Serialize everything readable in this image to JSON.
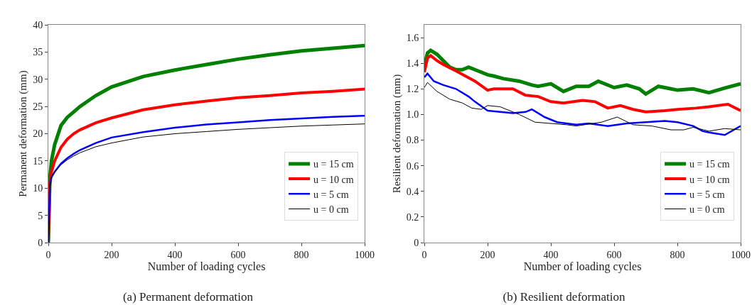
{
  "chart_data": [
    {
      "type": "line",
      "title": "(a) Permanent deformation",
      "xlabel": "Number of loading cycles",
      "ylabel": "Permanent deformation (mm)",
      "xlim": [
        0,
        1000
      ],
      "xticks": [
        0,
        200,
        400,
        600,
        800,
        1000
      ],
      "ylim": [
        0,
        40
      ],
      "yticks": [
        0,
        5,
        10,
        15,
        20,
        25,
        30,
        35,
        40
      ],
      "grid": false,
      "legend": "bottom right",
      "marker": "none",
      "line_style": "solid",
      "x": [
        0,
        5,
        10,
        20,
        40,
        60,
        80,
        100,
        150,
        200,
        300,
        400,
        500,
        600,
        700,
        800,
        900,
        1000
      ],
      "series": [
        {
          "name": "u = 15 cm",
          "color": "#008000",
          "values": [
            0,
            12,
            15,
            18,
            21.5,
            23,
            24,
            25,
            27,
            28.6,
            30.5,
            31.7,
            32.7,
            33.7,
            34.5,
            35.2,
            35.7,
            36.2
          ]
        },
        {
          "name": "u = 10 cm",
          "color": "#ff0000",
          "values": [
            0,
            11,
            13,
            15,
            17.5,
            19,
            20,
            20.7,
            22,
            22.9,
            24.4,
            25.3,
            26,
            26.6,
            27,
            27.5,
            27.8,
            28.2
          ]
        },
        {
          "name": "u = 5 cm",
          "color": "#0000ff",
          "values": [
            0,
            10.5,
            12,
            13,
            14.5,
            15.5,
            16.3,
            17,
            18.3,
            19.3,
            20.3,
            21.1,
            21.7,
            22.1,
            22.5,
            22.8,
            23.1,
            23.3
          ]
        },
        {
          "name": "u = 0 cm",
          "color": "#000000",
          "values": [
            0,
            10.5,
            12,
            13,
            14.3,
            15.2,
            15.9,
            16.5,
            17.6,
            18.3,
            19.4,
            20,
            20.4,
            20.8,
            21.1,
            21.4,
            21.6,
            21.8
          ]
        }
      ]
    },
    {
      "type": "line",
      "title": "(b) Resilient deformation",
      "xlabel": "Number of loading cycles",
      "ylabel": "Resilient deformation (mm)",
      "xlim": [
        0,
        1000
      ],
      "xticks": [
        0,
        200,
        400,
        600,
        800,
        1000
      ],
      "ylim": [
        0,
        1.7
      ],
      "yticks": [
        0,
        0.2,
        0.4,
        0.6,
        0.8,
        {
          "value": 1,
          "label": "1.0"
        },
        1.2,
        1.4,
        1.6
      ],
      "grid": false,
      "legend": "bottom right",
      "marker": "none",
      "line_style": "solid",
      "series": [
        {
          "name": "u = 15 cm",
          "color": "#008000",
          "x": [
            0,
            10,
            20,
            40,
            60,
            80,
            100,
            120,
            140,
            160,
            200,
            220,
            250,
            300,
            340,
            360,
            400,
            440,
            480,
            520,
            550,
            600,
            640,
            680,
            700,
            740,
            780,
            800,
            850,
            900,
            940,
            1000
          ],
          "values": [
            1.38,
            1.48,
            1.5,
            1.47,
            1.42,
            1.37,
            1.35,
            1.35,
            1.37,
            1.35,
            1.31,
            1.3,
            1.28,
            1.26,
            1.23,
            1.22,
            1.24,
            1.18,
            1.22,
            1.22,
            1.26,
            1.21,
            1.23,
            1.2,
            1.16,
            1.22,
            1.2,
            1.19,
            1.2,
            1.17,
            1.2,
            1.24
          ]
        },
        {
          "name": "u = 10 cm",
          "color": "#ff0000",
          "x": [
            0,
            10,
            20,
            40,
            60,
            100,
            130,
            160,
            200,
            220,
            280,
            320,
            360,
            400,
            440,
            500,
            540,
            580,
            620,
            660,
            700,
            760,
            800,
            860,
            900,
            960,
            1000
          ],
          "values": [
            1.33,
            1.44,
            1.46,
            1.42,
            1.39,
            1.34,
            1.3,
            1.26,
            1.19,
            1.2,
            1.2,
            1.15,
            1.14,
            1.1,
            1.09,
            1.11,
            1.1,
            1.05,
            1.07,
            1.04,
            1.02,
            1.03,
            1.04,
            1.05,
            1.06,
            1.08,
            1.03
          ]
        },
        {
          "name": "u = 5 cm",
          "color": "#0000ff",
          "x": [
            0,
            10,
            30,
            60,
            100,
            140,
            160,
            200,
            240,
            280,
            320,
            340,
            380,
            420,
            480,
            520,
            580,
            640,
            700,
            760,
            800,
            850,
            880,
            900,
            950,
            1000
          ],
          "values": [
            1.29,
            1.32,
            1.26,
            1.23,
            1.2,
            1.14,
            1.1,
            1.03,
            1.02,
            1.01,
            1.02,
            1.04,
            0.98,
            0.94,
            0.92,
            0.93,
            0.91,
            0.93,
            0.94,
            0.95,
            0.94,
            0.91,
            0.87,
            0.86,
            0.84,
            0.91
          ]
        },
        {
          "name": "u = 0 cm",
          "color": "#000000",
          "x": [
            0,
            10,
            40,
            80,
            120,
            150,
            180,
            200,
            240,
            300,
            350,
            400,
            450,
            480,
            560,
            610,
            660,
            720,
            780,
            820,
            850,
            900,
            950,
            1000
          ],
          "values": [
            1.21,
            1.25,
            1.18,
            1.12,
            1.09,
            1.05,
            1.04,
            1.07,
            1.06,
            1.0,
            0.94,
            0.93,
            0.92,
            0.91,
            0.94,
            0.98,
            0.92,
            0.91,
            0.88,
            0.88,
            0.9,
            0.87,
            0.89,
            0.88
          ]
        }
      ]
    }
  ]
}
